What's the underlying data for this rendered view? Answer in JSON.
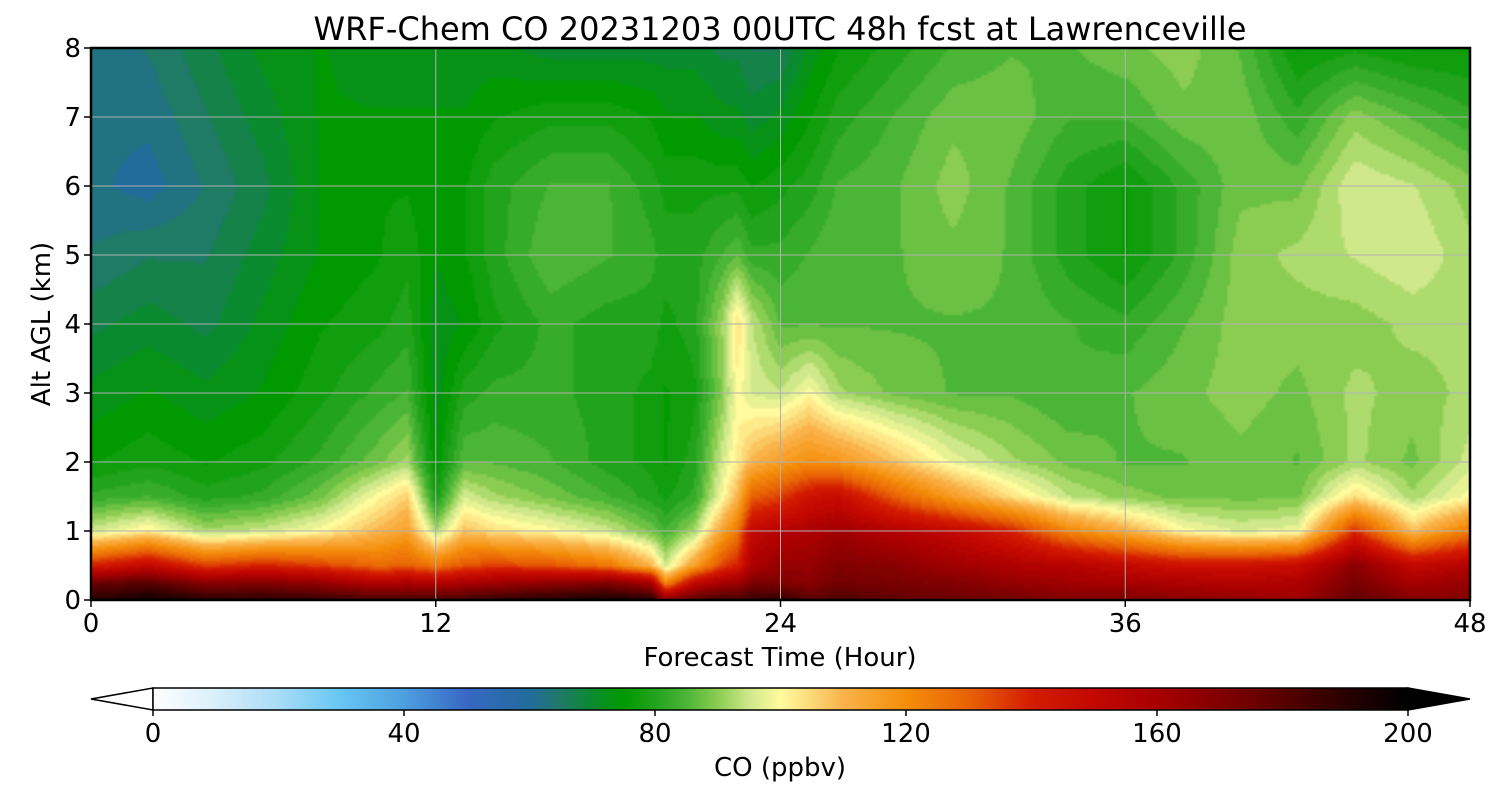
{
  "chart_data": {
    "type": "heatmap",
    "title": "WRF-Chem CO  20231203 00UTC 48h fcst at Lawrenceville",
    "xlabel": "Forecast Time (Hour)",
    "ylabel": "Alt AGL (km)",
    "xlim": [
      0,
      48
    ],
    "ylim": [
      0,
      8
    ],
    "x_ticks": [
      "0",
      "12",
      "24",
      "36",
      "48"
    ],
    "y_ticks": [
      "0",
      "1",
      "2",
      "3",
      "4",
      "5",
      "6",
      "7",
      "8"
    ],
    "grid": true,
    "colorbar": {
      "label": "CO  (ppbv)",
      "range": [
        0,
        200
      ],
      "ticks": [
        "0",
        "40",
        "80",
        "120",
        "160",
        "200"
      ],
      "extend": "both",
      "orientation": "horizontal",
      "placement": "bottom"
    },
    "x": [
      0,
      2,
      4,
      6,
      8,
      10,
      11,
      12,
      13,
      14,
      16,
      18,
      19.5,
      20,
      21,
      22,
      22.5,
      23,
      24,
      25,
      26,
      28,
      30,
      32,
      34,
      36,
      38,
      40,
      42,
      44,
      46,
      48
    ],
    "y": [
      0,
      0.25,
      0.5,
      1,
      1.5,
      2,
      3,
      4,
      5,
      6,
      7,
      8
    ],
    "z": [
      [
        190,
        196,
        191,
        190,
        188,
        184,
        186,
        184,
        186,
        188,
        192,
        195,
        192,
        168,
        180,
        186,
        184,
        186,
        190,
        180,
        182,
        178,
        176,
        174,
        170,
        172,
        168,
        166,
        162,
        178,
        170,
        168
      ],
      [
        175,
        180,
        168,
        170,
        165,
        155,
        158,
        155,
        158,
        162,
        166,
        170,
        160,
        120,
        150,
        160,
        162,
        172,
        170,
        168,
        174,
        172,
        170,
        165,
        162,
        160,
        158,
        156,
        158,
        172,
        160,
        165
      ],
      [
        140,
        150,
        135,
        140,
        135,
        128,
        130,
        125,
        132,
        135,
        132,
        125,
        110,
        95,
        115,
        135,
        140,
        158,
        165,
        165,
        170,
        168,
        162,
        158,
        155,
        150,
        145,
        145,
        148,
        168,
        150,
        155
      ],
      [
        95,
        102,
        92,
        95,
        100,
        110,
        115,
        92,
        108,
        104,
        100,
        95,
        88,
        84,
        92,
        115,
        125,
        150,
        155,
        158,
        162,
        156,
        150,
        140,
        122,
        112,
        100,
        96,
        98,
        138,
        108,
        125
      ],
      [
        82,
        84,
        80,
        82,
        88,
        100,
        106,
        78,
        96,
        92,
        88,
        84,
        80,
        78,
        82,
        100,
        110,
        130,
        135,
        145,
        148,
        130,
        116,
        104,
        94,
        90,
        88,
        88,
        88,
        104,
        92,
        100
      ],
      [
        76,
        78,
        76,
        78,
        82,
        88,
        92,
        74,
        86,
        86,
        84,
        80,
        78,
        76,
        80,
        96,
        102,
        110,
        116,
        120,
        118,
        108,
        98,
        92,
        88,
        86,
        86,
        88,
        86,
        92,
        88,
        95
      ],
      [
        72,
        74,
        72,
        74,
        78,
        82,
        84,
        72,
        80,
        82,
        82,
        80,
        78,
        76,
        78,
        90,
        100,
        96,
        94,
        100,
        92,
        88,
        86,
        86,
        84,
        86,
        88,
        90,
        88,
        92,
        90,
        92
      ],
      [
        68,
        70,
        68,
        72,
        76,
        78,
        80,
        72,
        74,
        78,
        82,
        80,
        80,
        78,
        80,
        92,
        104,
        94,
        86,
        86,
        86,
        86,
        86,
        86,
        84,
        82,
        86,
        90,
        90,
        90,
        92,
        92
      ],
      [
        64,
        66,
        66,
        70,
        74,
        76,
        78,
        74,
        76,
        80,
        86,
        84,
        82,
        80,
        80,
        84,
        86,
        82,
        82,
        84,
        86,
        86,
        88,
        86,
        80,
        76,
        82,
        90,
        92,
        94,
        96,
        92
      ],
      [
        62,
        60,
        64,
        68,
        74,
        76,
        76,
        74,
        76,
        80,
        84,
        84,
        80,
        78,
        78,
        78,
        78,
        76,
        78,
        80,
        84,
        86,
        90,
        86,
        80,
        76,
        82,
        88,
        88,
        96,
        94,
        90
      ],
      [
        62,
        62,
        66,
        70,
        74,
        74,
        74,
        74,
        74,
        76,
        78,
        78,
        76,
        74,
        74,
        72,
        72,
        70,
        72,
        76,
        80,
        84,
        88,
        88,
        84,
        84,
        88,
        88,
        82,
        90,
        86,
        82
      ],
      [
        62,
        64,
        68,
        72,
        74,
        72,
        72,
        72,
        72,
        72,
        70,
        70,
        70,
        70,
        70,
        68,
        68,
        66,
        66,
        72,
        76,
        80,
        84,
        86,
        86,
        88,
        90,
        86,
        76,
        78,
        76,
        76
      ]
    ],
    "colormap": [
      [
        0,
        "#ffffff"
      ],
      [
        10,
        "#d9effa"
      ],
      [
        20,
        "#a8dcf6"
      ],
      [
        30,
        "#66c6f2"
      ],
      [
        40,
        "#4d9fe0"
      ],
      [
        50,
        "#3768c4"
      ],
      [
        60,
        "#226c9c"
      ],
      [
        65,
        "#1f7a66"
      ],
      [
        70,
        "#0a8a2e"
      ],
      [
        75,
        "#009900"
      ],
      [
        80,
        "#22a31c"
      ],
      [
        85,
        "#4bb536"
      ],
      [
        90,
        "#8bcd52"
      ],
      [
        95,
        "#cfe88a"
      ],
      [
        100,
        "#fffb9e"
      ],
      [
        105,
        "#fcd878"
      ],
      [
        110,
        "#fab34a"
      ],
      [
        120,
        "#f58d0a"
      ],
      [
        130,
        "#e86205"
      ],
      [
        140,
        "#d41c00"
      ],
      [
        150,
        "#c20800"
      ],
      [
        160,
        "#a80000"
      ],
      [
        175,
        "#6e0000"
      ],
      [
        190,
        "#2a0000"
      ],
      [
        200,
        "#000000"
      ]
    ]
  }
}
